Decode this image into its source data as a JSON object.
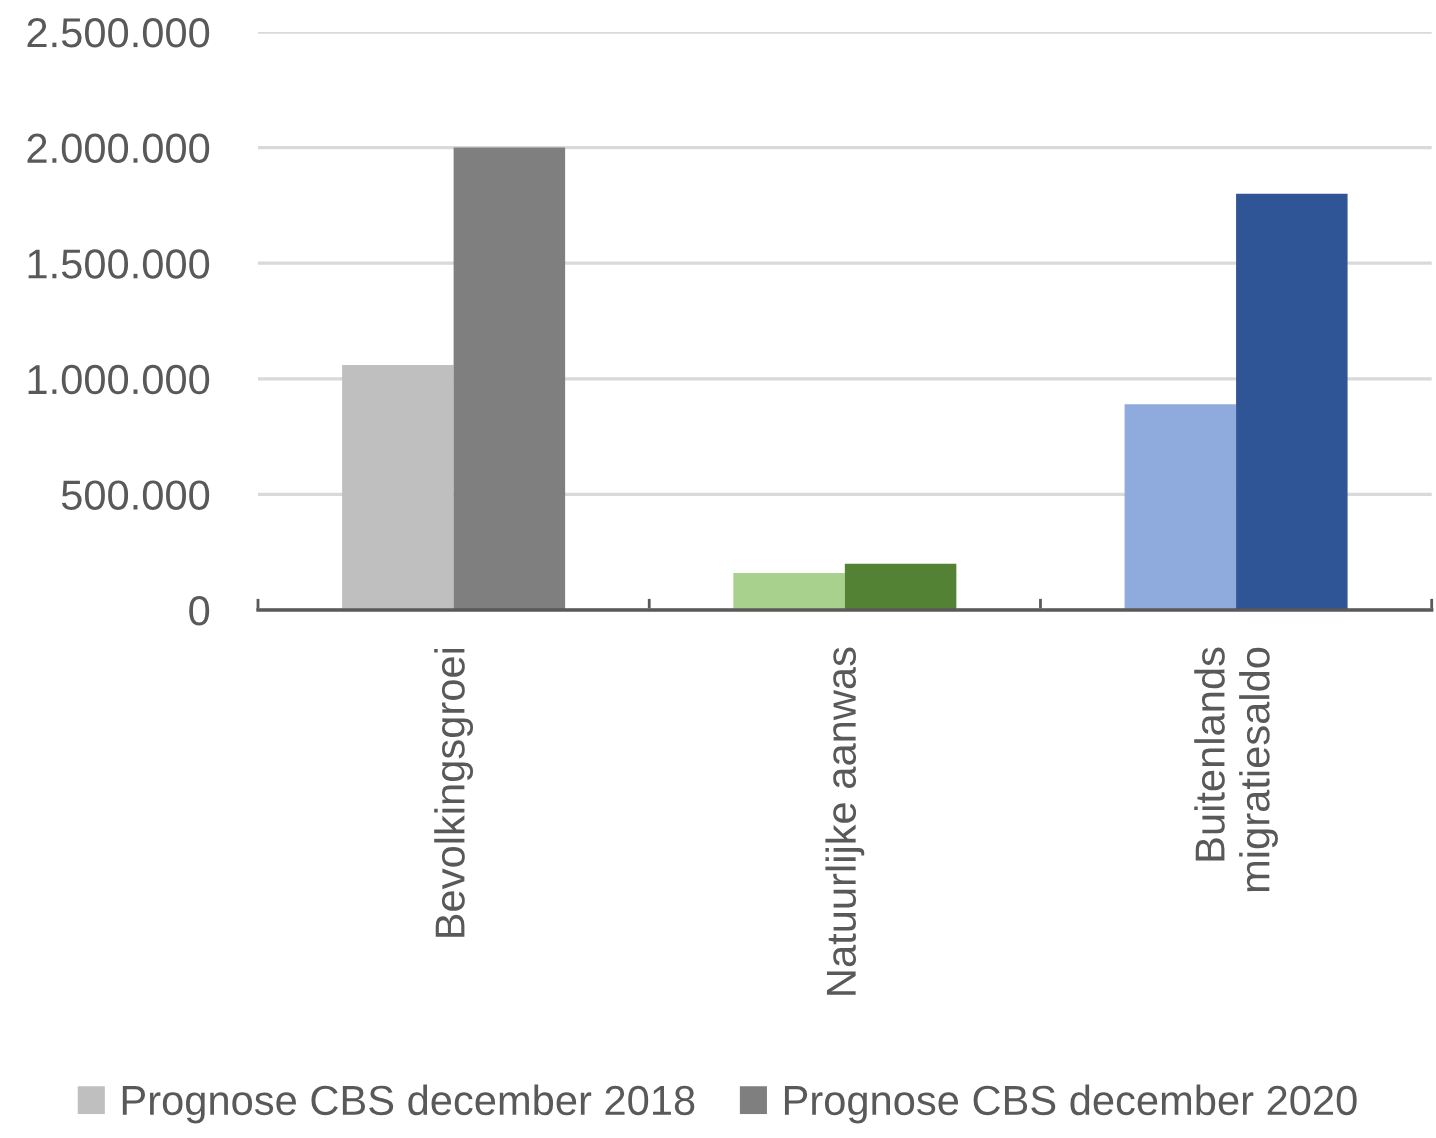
{
  "chart_data": {
    "type": "bar",
    "categories": [
      "Bevolkingsgroei",
      "Natuurlijke aanwas",
      "Buitenlands\nmigratiesaldo"
    ],
    "series": [
      {
        "name": "Prognose CBS december 2018",
        "color": "#bfbfbf",
        "colors": [
          "#bfbfbf",
          "#a9d18e",
          "#8faadc"
        ],
        "values": [
          1060000,
          160000,
          890000
        ]
      },
      {
        "name": "Prognose CBS december 2020",
        "color": "#7f7f7f",
        "colors": [
          "#7f7f7f",
          "#548235",
          "#2f5597"
        ],
        "values": [
          2000000,
          200000,
          1800000
        ]
      }
    ],
    "ylim": [
      0,
      2500000
    ],
    "yticks": [
      0,
      {
        "value": 500000,
        "label": "500.000"
      },
      {
        "value": 1000000,
        "label": "1.000.000"
      },
      {
        "value": 1500000,
        "label": "1.500.000"
      },
      {
        "value": 2000000,
        "label": "2.000.000"
      },
      {
        "value": 2500000,
        "label": "2.500.000"
      }
    ],
    "grid": "y",
    "legend": "bottom"
  }
}
